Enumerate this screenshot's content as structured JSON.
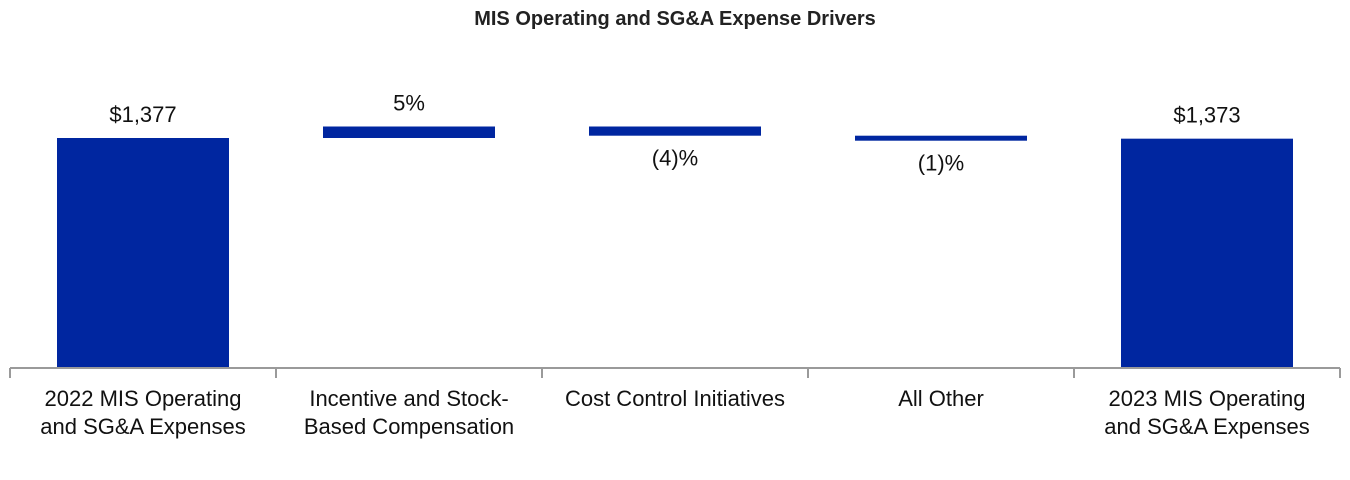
{
  "chart_data": {
    "type": "bar",
    "subtype": "waterfall",
    "title": "MIS Operating and SG&A Expense Drivers",
    "xlabel": "",
    "ylabel": "",
    "categories": [
      "2022 MIS Operating and SG&A Expenses",
      "Incentive and Stock-Based Compensation",
      "Cost Control Initiatives",
      "All Other",
      "2023 MIS Operating and SG&A Expenses"
    ],
    "category_lines": [
      [
        "2022 MIS Operating",
        "and SG&A Expenses"
      ],
      [
        "Incentive and Stock-",
        "Based Compensation"
      ],
      [
        "Cost Control Initiatives"
      ],
      [
        "All Other"
      ],
      [
        "2023 MIS Operating",
        "and SG&A Expenses"
      ]
    ],
    "bars": [
      {
        "kind": "total",
        "value": 1377,
        "label": "$1,377"
      },
      {
        "kind": "change",
        "percent": 5,
        "label": "5%"
      },
      {
        "kind": "change",
        "percent": -4,
        "label": "(4)%"
      },
      {
        "kind": "change",
        "percent": -1,
        "label": "(1)%"
      },
      {
        "kind": "total",
        "value": 1373,
        "label": "$1,373"
      }
    ],
    "grid": false,
    "legend": "none",
    "colors": {
      "bar": "#0026A0",
      "axis": "#9A9A9A",
      "text": "#111111"
    }
  }
}
